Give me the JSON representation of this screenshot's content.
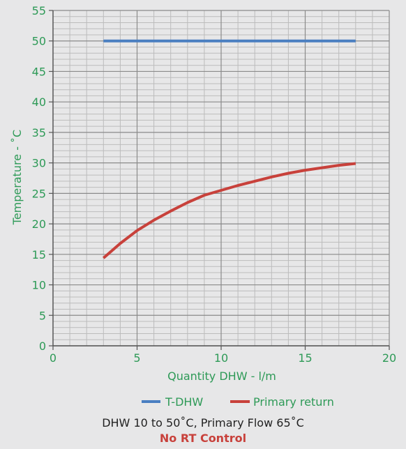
{
  "chart_data": {
    "type": "line",
    "xlabel": "Quantity DHW - l/m",
    "ylabel": "Temperature - ˚C",
    "xlim": [
      0,
      20
    ],
    "ylim": [
      0,
      55
    ],
    "x_ticks": [
      0,
      5,
      10,
      15,
      20
    ],
    "y_ticks": [
      0,
      5,
      10,
      15,
      20,
      25,
      30,
      35,
      40,
      45,
      50,
      55
    ],
    "x_minor_step": 1,
    "y_minor_step": 1,
    "grid": true,
    "legend_position": "bottom",
    "series": [
      {
        "name": "T-DHW",
        "color": "#4a7fc1",
        "x": [
          3,
          18
        ],
        "y": [
          50,
          50
        ]
      },
      {
        "name": "Primary return",
        "color": "#c8413b",
        "x": [
          3,
          4,
          5,
          6,
          7,
          8,
          9,
          10,
          11,
          12,
          13,
          14,
          15,
          16,
          17,
          18
        ],
        "y": [
          14.4,
          16.8,
          18.9,
          20.6,
          22.1,
          23.5,
          24.7,
          25.5,
          26.3,
          27.0,
          27.7,
          28.3,
          28.8,
          29.2,
          29.6,
          29.9
        ]
      }
    ],
    "caption": "DHW 10 to 50˚C, Primary Flow 65˚C",
    "subcaption": "No RT Control"
  },
  "colors": {
    "background": "#e7e7e8",
    "axis_text": "#2e9a57",
    "grid_major": "#8a8a8a",
    "grid_minor": "#bcbcbc",
    "caption": "#222222",
    "subcaption": "#c8413b"
  }
}
